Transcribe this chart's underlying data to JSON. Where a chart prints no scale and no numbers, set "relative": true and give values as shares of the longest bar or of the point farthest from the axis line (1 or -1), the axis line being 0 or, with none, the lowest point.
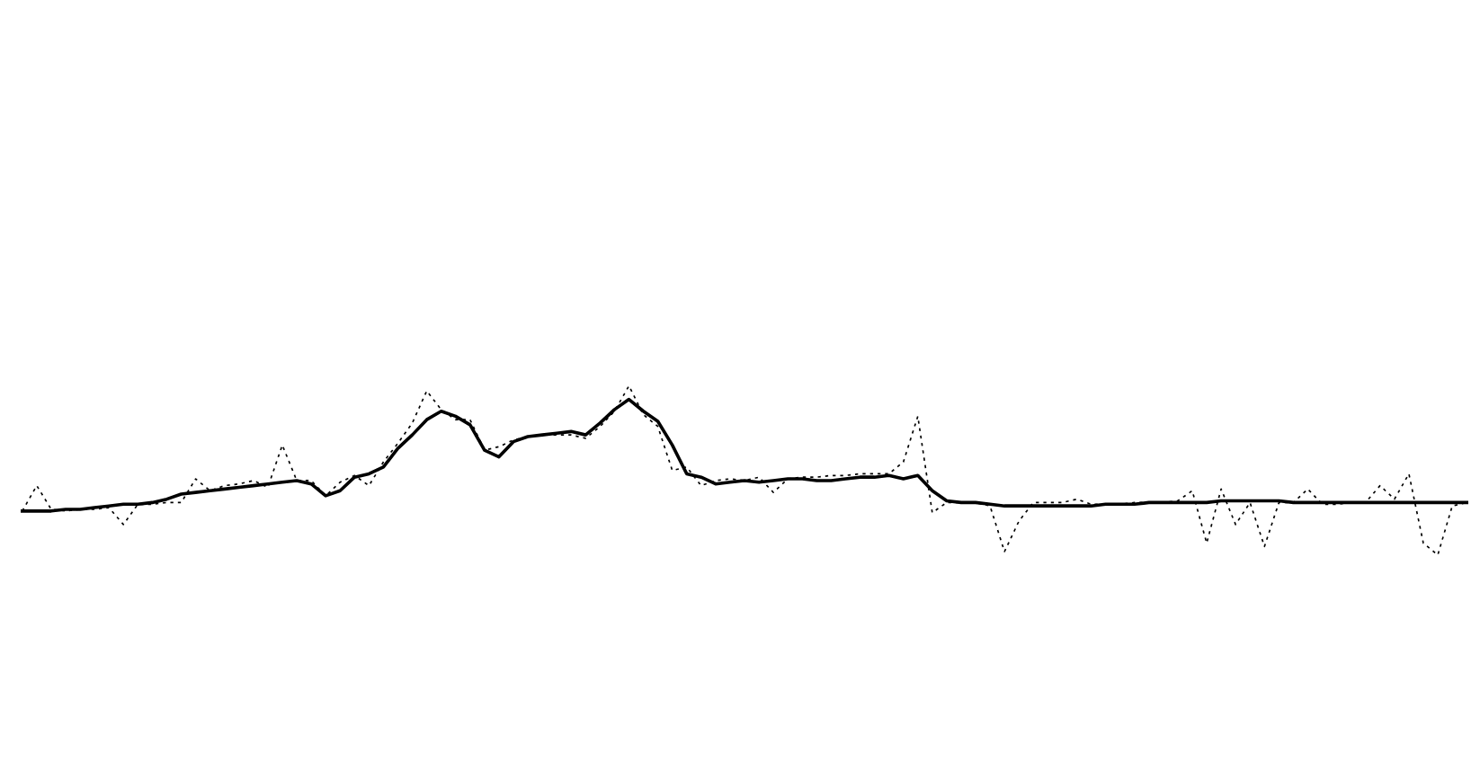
{
  "chart_data": {
    "type": "line",
    "relative": true,
    "categories": [
      null,
      null,
      null,
      null,
      null,
      null,
      null,
      null,
      null,
      null,
      null,
      null,
      null,
      null,
      null,
      null,
      null,
      null,
      null,
      null,
      null,
      null,
      null,
      null,
      null,
      null,
      null,
      null,
      null,
      null,
      null,
      null,
      null,
      null,
      null,
      null,
      null,
      null,
      null,
      null,
      null,
      null,
      null,
      null,
      null,
      null,
      null,
      null,
      null,
      null,
      null,
      null,
      null,
      null,
      null,
      null,
      null,
      null,
      null,
      null,
      null,
      null,
      null,
      null,
      null,
      null,
      null,
      null,
      null,
      null,
      null,
      null,
      null,
      null,
      null,
      null,
      null,
      null,
      null,
      null,
      null,
      null,
      null,
      null,
      null,
      null,
      null,
      null,
      null,
      null,
      null,
      null,
      null,
      null,
      null,
      null,
      null,
      null,
      null,
      null,
      null
    ],
    "series": [
      {
        "color": "#000000",
        "line_style": "dashed",
        "values": [
          0.26,
          0.41,
          0.27,
          0.26,
          0.27,
          0.27,
          0.28,
          0.18,
          0.3,
          0.3,
          0.31,
          0.31,
          0.45,
          0.38,
          0.41,
          0.42,
          0.44,
          0.4,
          0.65,
          0.44,
          0.44,
          0.35,
          0.43,
          0.47,
          0.41,
          0.55,
          0.66,
          0.78,
          0.97,
          0.86,
          0.8,
          0.8,
          0.62,
          0.64,
          0.68,
          0.7,
          0.71,
          0.71,
          0.71,
          0.69,
          0.76,
          0.85,
          1.0,
          0.83,
          0.76,
          0.5,
          0.52,
          0.41,
          0.44,
          0.45,
          0.44,
          0.46,
          0.37,
          0.45,
          0.46,
          0.46,
          0.47,
          0.47,
          0.48,
          0.48,
          0.48,
          0.55,
          0.82,
          0.25,
          0.31,
          0.31,
          0.31,
          0.29,
          0.02,
          0.2,
          0.31,
          0.31,
          0.31,
          0.33,
          0.3,
          0.3,
          0.3,
          0.31,
          0.31,
          0.31,
          0.32,
          0.38,
          0.07,
          0.39,
          0.18,
          0.31,
          0.05,
          0.31,
          0.31,
          0.39,
          0.3,
          0.3,
          0.31,
          0.31,
          0.41,
          0.33,
          0.48,
          0.07,
          0,
          0.29,
          0.31
        ]
      },
      {
        "color": "#000000",
        "line_style": "solid",
        "values": [
          0.26,
          0.26,
          0.26,
          0.27,
          0.27,
          0.28,
          0.29,
          0.3,
          0.3,
          0.31,
          0.33,
          0.36,
          0.37,
          0.38,
          0.39,
          0.4,
          0.41,
          0.42,
          0.43,
          0.44,
          0.42,
          0.35,
          0.38,
          0.46,
          0.48,
          0.52,
          0.63,
          0.71,
          0.8,
          0.85,
          0.82,
          0.77,
          0.62,
          0.58,
          0.67,
          0.7,
          0.71,
          0.72,
          0.73,
          0.71,
          0.78,
          0.86,
          0.92,
          0.85,
          0.79,
          0.65,
          0.48,
          0.46,
          0.42,
          0.43,
          0.44,
          0.43,
          0.44,
          0.45,
          0.45,
          0.44,
          0.44,
          0.45,
          0.46,
          0.46,
          0.47,
          0.45,
          0.47,
          0.38,
          0.32,
          0.31,
          0.31,
          0.3,
          0.29,
          0.29,
          0.29,
          0.29,
          0.29,
          0.29,
          0.29,
          0.3,
          0.3,
          0.3,
          0.31,
          0.31,
          0.31,
          0.31,
          0.31,
          0.32,
          0.32,
          0.32,
          0.32,
          0.32,
          0.31,
          0.31,
          0.31,
          0.31,
          0.31,
          0.31,
          0.31,
          0.31,
          0.31,
          0.31,
          0.31,
          0.31,
          0.31
        ]
      }
    ]
  }
}
